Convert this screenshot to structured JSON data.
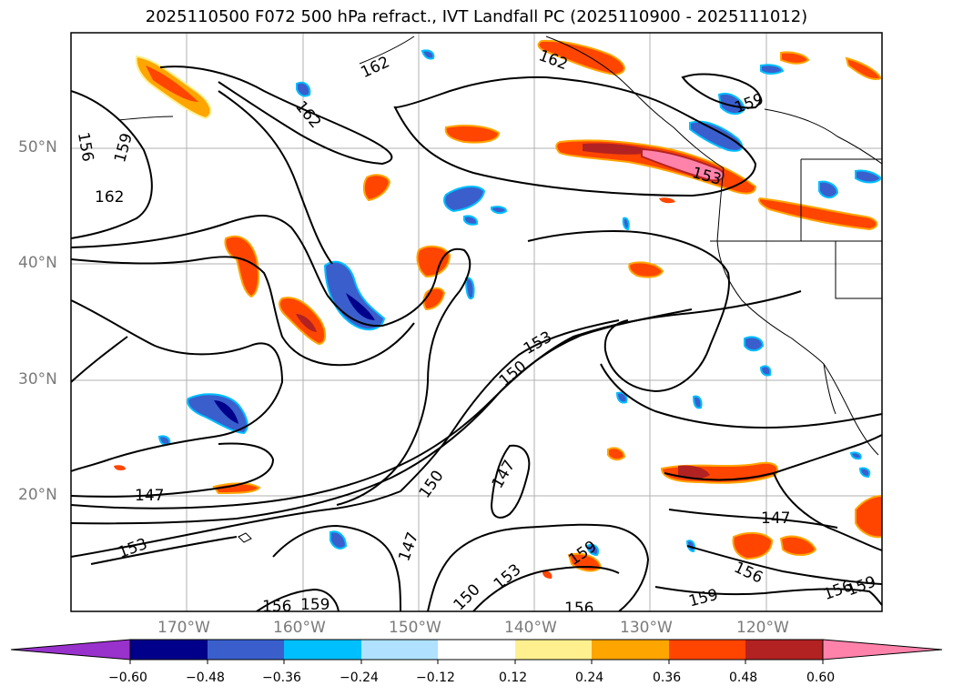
{
  "title": "2025110500 F072 500 hPa refract., IVT Landfall PC (2025110900 - 2025111012)",
  "lat_labels": [
    "50°N",
    "40°N",
    "30°N",
    "20°N"
  ],
  "lon_labels": [
    "170°W",
    "160°W",
    "150°W",
    "140°W",
    "130°W",
    "120°W"
  ],
  "contour_labels": [
    "156",
    "159",
    "162",
    "162",
    "162",
    "162",
    "153",
    "159",
    "153",
    "150",
    "147",
    "150",
    "147",
    "147",
    "153",
    "156",
    "159",
    "150",
    "153",
    "159",
    "156",
    "159",
    "156",
    "147",
    "156",
    "159"
  ],
  "colorbar": {
    "ticks": [
      "−0.60",
      "−0.48",
      "−0.36",
      "−0.24",
      "−0.12",
      "0.12",
      "0.24",
      "0.36",
      "0.48",
      "0.60"
    ],
    "colors": [
      "#9932cc",
      "#00008b",
      "#3a5fcd",
      "#00bfff",
      "#b0e2ff",
      "#ffffff",
      "#fff08f",
      "#ffa500",
      "#ff4500",
      "#b22222",
      "#ff82ab"
    ]
  }
}
